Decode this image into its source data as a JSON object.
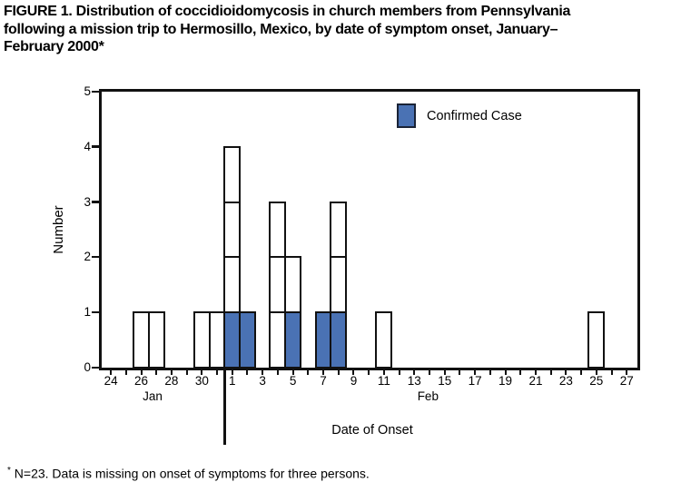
{
  "title": {
    "lines": [
      "FIGURE 1. Distribution of coccidioidomycosis in church members from Pennsylvania",
      "following a mission trip to Hermosillo, Mexico, by date of symptom onset, January–",
      "February 2000*"
    ]
  },
  "legend": {
    "label": "Confirmed Case"
  },
  "footnote": {
    "marker": "*",
    "text": " N=23. Data is missing on onset of symptoms for three persons."
  },
  "colors": {
    "confirmed": "#4a72b4",
    "unconfirmed": "#ffffff",
    "line": "#111111",
    "background": "#ffffff"
  },
  "chart_data": {
    "type": "bar",
    "subtype": "epi-curve, stacked unit cells (1 cell = 1 case)",
    "title": "FIGURE 1. Distribution of coccidioidomycosis in church members from Pennsylvania following a mission trip to Hermosillo, Mexico, by date of symptom onset, January–February 2000*",
    "xlabel": "Date of Onset",
    "ylabel": "Number",
    "ylim": [
      0,
      5
    ],
    "y_ticks": [
      "0",
      "1",
      "2",
      "3",
      "4",
      "5"
    ],
    "grid": false,
    "legend_position": "top-right-inside",
    "x_axis": {
      "start_date": "Jan 24",
      "end_date": "Feb 27",
      "tick_every_days": 1,
      "label_every_days": 2,
      "tick_labels": [
        "24",
        "26",
        "28",
        "30",
        "1",
        "3",
        "5",
        "7",
        "9",
        "11",
        "13",
        "15",
        "17",
        "19",
        "21",
        "23",
        "25",
        "27"
      ],
      "month_labels": [
        {
          "label": "Jan",
          "day_index": 2.75
        },
        {
          "label": "Feb",
          "day_index": 20.9
        }
      ],
      "month_separator_after_day_index": 7.5
    },
    "cases": [
      {
        "date": "Jan 26",
        "day_index": 2,
        "total": 1,
        "confirmed": 0
      },
      {
        "date": "Jan 27",
        "day_index": 3,
        "total": 1,
        "confirmed": 0
      },
      {
        "date": "Jan 30",
        "day_index": 6,
        "total": 1,
        "confirmed": 0
      },
      {
        "date": "Jan 31",
        "day_index": 7,
        "total": 1,
        "confirmed": 0
      },
      {
        "date": "Feb 1",
        "day_index": 8,
        "total": 4,
        "confirmed": 1
      },
      {
        "date": "Feb 2",
        "day_index": 9,
        "total": 1,
        "confirmed": 1
      },
      {
        "date": "Feb 4",
        "day_index": 11,
        "total": 3,
        "confirmed": 0
      },
      {
        "date": "Feb 5",
        "day_index": 12,
        "total": 2,
        "confirmed": 1
      },
      {
        "date": "Feb 7",
        "day_index": 14,
        "total": 1,
        "confirmed": 1
      },
      {
        "date": "Feb 8",
        "day_index": 15,
        "total": 3,
        "confirmed": 1
      },
      {
        "date": "Feb 11",
        "day_index": 18,
        "total": 1,
        "confirmed": 0
      },
      {
        "date": "Feb 25",
        "day_index": 32,
        "total": 1,
        "confirmed": 0
      }
    ],
    "n_total": 23,
    "n_missing_onset": 3,
    "n_plotted": 20,
    "n_confirmed_shaded": 5
  }
}
